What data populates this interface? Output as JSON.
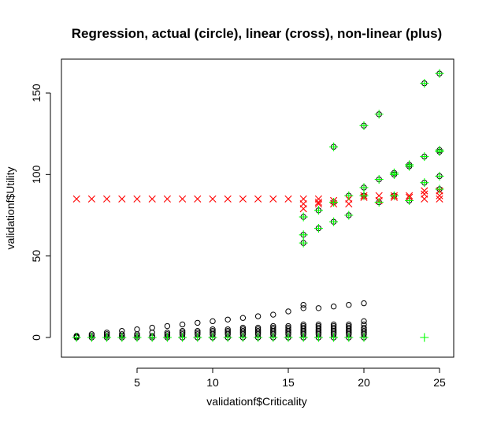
{
  "chart_data": {
    "type": "scatter",
    "title": "Regression, actual (circle), linear (cross), non-linear (plus)",
    "xlabel": "validationf$Criticality",
    "ylabel": "validationf$Utility",
    "xlim": [
      0,
      26
    ],
    "ylim": [
      -5,
      170
    ],
    "xticks": [
      5,
      10,
      15,
      20,
      25
    ],
    "yticks": [
      0,
      50,
      100,
      150
    ],
    "grid": false,
    "series": [
      {
        "marker": "circle",
        "color": "#000000",
        "points": [
          [
            1,
            0
          ],
          [
            1,
            0.5
          ],
          [
            1,
            1
          ],
          [
            2,
            0
          ],
          [
            2,
            1
          ],
          [
            2,
            2
          ],
          [
            3,
            0
          ],
          [
            3,
            1
          ],
          [
            3,
            2
          ],
          [
            3,
            3
          ],
          [
            4,
            0
          ],
          [
            4,
            1
          ],
          [
            4,
            2
          ],
          [
            4,
            4
          ],
          [
            5,
            0
          ],
          [
            5,
            1
          ],
          [
            5,
            2
          ],
          [
            5,
            5
          ],
          [
            6,
            0
          ],
          [
            6,
            1
          ],
          [
            6,
            3
          ],
          [
            6,
            6
          ],
          [
            7,
            0
          ],
          [
            7,
            1
          ],
          [
            7,
            2
          ],
          [
            7,
            3
          ],
          [
            7,
            7
          ],
          [
            8,
            0
          ],
          [
            8,
            2
          ],
          [
            8,
            3
          ],
          [
            8,
            4
          ],
          [
            8,
            8
          ],
          [
            9,
            0
          ],
          [
            9,
            2
          ],
          [
            9,
            3
          ],
          [
            9,
            4
          ],
          [
            9,
            9
          ],
          [
            10,
            0
          ],
          [
            10,
            2
          ],
          [
            10,
            3
          ],
          [
            10,
            4
          ],
          [
            10,
            5
          ],
          [
            10,
            10
          ],
          [
            11,
            0
          ],
          [
            11,
            2
          ],
          [
            11,
            3
          ],
          [
            11,
            4
          ],
          [
            11,
            5
          ],
          [
            11,
            11
          ],
          [
            12,
            0
          ],
          [
            12,
            2
          ],
          [
            12,
            3
          ],
          [
            12,
            4
          ],
          [
            12,
            5
          ],
          [
            12,
            6
          ],
          [
            12,
            12
          ],
          [
            13,
            0
          ],
          [
            13,
            2
          ],
          [
            13,
            3
          ],
          [
            13,
            4
          ],
          [
            13,
            5
          ],
          [
            13,
            6
          ],
          [
            13,
            13
          ],
          [
            14,
            0
          ],
          [
            14,
            2
          ],
          [
            14,
            3
          ],
          [
            14,
            4
          ],
          [
            14,
            5
          ],
          [
            14,
            6
          ],
          [
            14,
            7
          ],
          [
            14,
            14
          ],
          [
            15,
            0
          ],
          [
            15,
            2
          ],
          [
            15,
            3
          ],
          [
            15,
            4
          ],
          [
            15,
            5
          ],
          [
            15,
            6
          ],
          [
            15,
            7
          ],
          [
            15,
            16
          ],
          [
            16,
            0
          ],
          [
            16,
            2
          ],
          [
            16,
            3
          ],
          [
            16,
            4
          ],
          [
            16,
            5
          ],
          [
            16,
            6
          ],
          [
            16,
            7
          ],
          [
            16,
            8
          ],
          [
            16,
            18
          ],
          [
            16,
            20
          ],
          [
            17,
            0
          ],
          [
            17,
            2
          ],
          [
            17,
            3
          ],
          [
            17,
            4
          ],
          [
            17,
            5
          ],
          [
            17,
            6
          ],
          [
            17,
            7
          ],
          [
            17,
            8
          ],
          [
            17,
            18
          ],
          [
            18,
            0
          ],
          [
            18,
            2
          ],
          [
            18,
            3
          ],
          [
            18,
            4
          ],
          [
            18,
            5
          ],
          [
            18,
            6
          ],
          [
            18,
            7
          ],
          [
            18,
            8
          ],
          [
            18,
            19
          ],
          [
            19,
            0
          ],
          [
            19,
            2
          ],
          [
            19,
            3
          ],
          [
            19,
            4
          ],
          [
            19,
            5
          ],
          [
            19,
            6
          ],
          [
            19,
            7
          ],
          [
            19,
            8
          ],
          [
            19,
            20
          ],
          [
            20,
            0
          ],
          [
            20,
            2
          ],
          [
            20,
            3
          ],
          [
            20,
            4
          ],
          [
            20,
            5
          ],
          [
            20,
            6
          ],
          [
            20,
            8
          ],
          [
            20,
            10
          ],
          [
            20,
            21
          ],
          [
            16,
            58
          ],
          [
            16,
            63
          ],
          [
            16,
            74
          ],
          [
            17,
            67
          ],
          [
            17,
            78
          ],
          [
            18,
            71
          ],
          [
            18,
            83
          ],
          [
            18,
            117
          ],
          [
            19,
            75
          ],
          [
            19,
            87
          ],
          [
            20,
            87
          ],
          [
            20,
            92
          ],
          [
            20,
            130
          ],
          [
            21,
            83
          ],
          [
            21,
            97
          ],
          [
            21,
            137
          ],
          [
            22,
            87
          ],
          [
            22,
            100
          ],
          [
            22,
            101
          ],
          [
            23,
            84
          ],
          [
            23,
            105
          ],
          [
            23,
            106
          ],
          [
            24,
            95
          ],
          [
            24,
            111
          ],
          [
            24,
            156
          ],
          [
            25,
            91
          ],
          [
            25,
            99
          ],
          [
            25,
            114
          ],
          [
            25,
            115
          ],
          [
            25,
            162
          ]
        ]
      },
      {
        "marker": "cross",
        "color": "#ff0000",
        "points": [
          [
            1,
            85
          ],
          [
            2,
            85
          ],
          [
            3,
            85
          ],
          [
            4,
            85
          ],
          [
            5,
            85
          ],
          [
            6,
            85
          ],
          [
            7,
            85
          ],
          [
            8,
            85
          ],
          [
            9,
            85
          ],
          [
            10,
            85
          ],
          [
            11,
            85
          ],
          [
            12,
            85
          ],
          [
            13,
            85
          ],
          [
            14,
            85
          ],
          [
            15,
            85
          ],
          [
            16,
            85
          ],
          [
            16,
            82
          ],
          [
            16,
            79
          ],
          [
            17,
            85
          ],
          [
            17,
            83
          ],
          [
            17,
            82
          ],
          [
            18,
            84
          ],
          [
            18,
            82
          ],
          [
            19,
            85
          ],
          [
            19,
            82
          ],
          [
            20,
            87
          ],
          [
            20,
            86
          ],
          [
            21,
            87
          ],
          [
            21,
            84
          ],
          [
            22,
            86
          ],
          [
            22,
            87
          ],
          [
            23,
            86
          ],
          [
            23,
            87
          ],
          [
            24,
            85
          ],
          [
            24,
            88
          ],
          [
            24,
            90
          ],
          [
            25,
            85
          ],
          [
            25,
            87
          ],
          [
            25,
            90
          ]
        ]
      },
      {
        "marker": "plus",
        "color": "#00ff00",
        "points": [
          [
            1,
            0
          ],
          [
            2,
            0
          ],
          [
            3,
            0
          ],
          [
            4,
            0
          ],
          [
            5,
            0
          ],
          [
            6,
            0
          ],
          [
            7,
            0
          ],
          [
            8,
            0
          ],
          [
            9,
            0
          ],
          [
            10,
            0
          ],
          [
            11,
            0
          ],
          [
            12,
            0
          ],
          [
            13,
            0
          ],
          [
            14,
            0
          ],
          [
            15,
            0
          ],
          [
            16,
            0
          ],
          [
            17,
            0
          ],
          [
            18,
            0
          ],
          [
            19,
            0
          ],
          [
            20,
            0
          ],
          [
            24,
            0
          ],
          [
            16,
            58
          ],
          [
            16,
            63
          ],
          [
            16,
            74
          ],
          [
            17,
            67
          ],
          [
            17,
            78
          ],
          [
            18,
            71
          ],
          [
            18,
            83
          ],
          [
            18,
            117
          ],
          [
            19,
            75
          ],
          [
            19,
            87
          ],
          [
            20,
            87
          ],
          [
            20,
            92
          ],
          [
            20,
            130
          ],
          [
            21,
            83
          ],
          [
            21,
            97
          ],
          [
            21,
            137
          ],
          [
            22,
            87
          ],
          [
            22,
            100
          ],
          [
            22,
            101
          ],
          [
            23,
            84
          ],
          [
            23,
            105
          ],
          [
            23,
            106
          ],
          [
            24,
            95
          ],
          [
            24,
            111
          ],
          [
            24,
            156
          ],
          [
            25,
            91
          ],
          [
            25,
            99
          ],
          [
            25,
            114
          ],
          [
            25,
            115
          ],
          [
            25,
            162
          ]
        ]
      }
    ]
  }
}
